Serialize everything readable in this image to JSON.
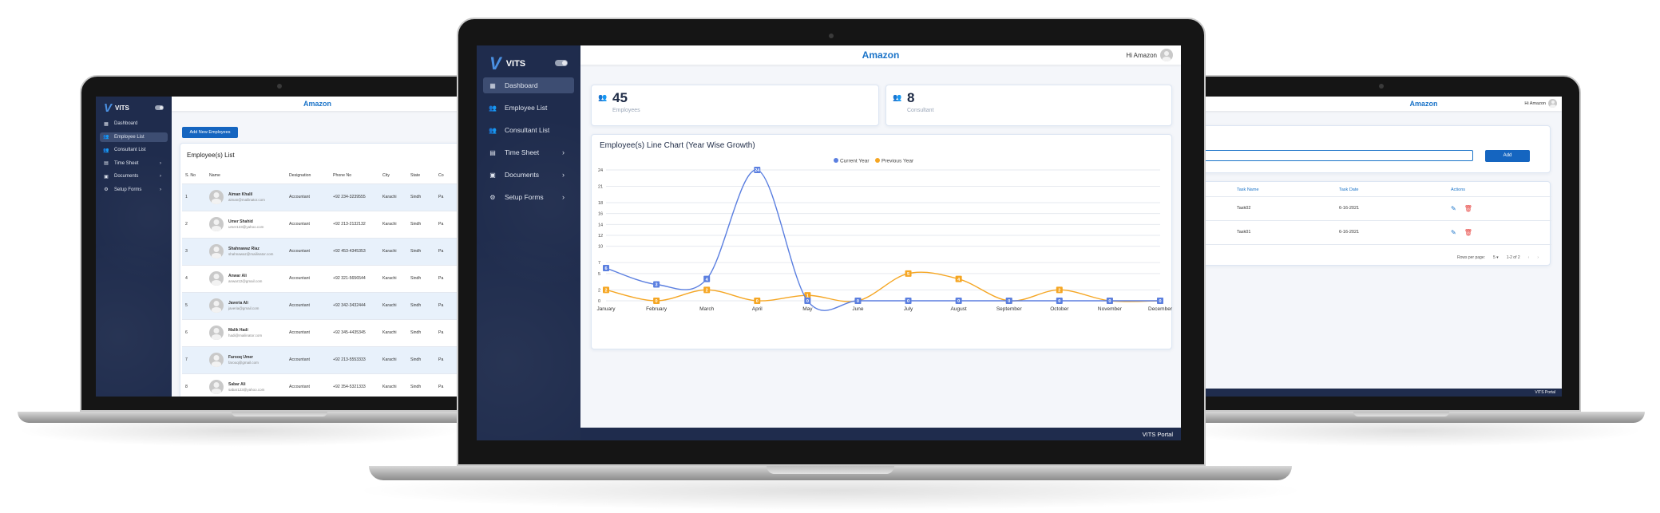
{
  "app": {
    "brand": "VITS",
    "company": "Amazon",
    "greeting": "Hi Amazon",
    "footer": "VITS Portal",
    "colors": {
      "sidebar": "#1f2c4d",
      "accent": "#1a73c8",
      "current_year": "#5b7fe0",
      "previous_year": "#f5a623",
      "delete": "#e53935"
    }
  },
  "nav": [
    {
      "label": "Dashboard",
      "icon": "dashboard-icon",
      "glyph": "▦",
      "active": true,
      "chevron": false
    },
    {
      "label": "Employee List",
      "icon": "people-icon",
      "glyph": "👥",
      "active": false,
      "chevron": false
    },
    {
      "label": "Consultant List",
      "icon": "people-icon",
      "glyph": "👥",
      "active": false,
      "chevron": false
    },
    {
      "label": "Time Sheet",
      "icon": "timesheet-icon",
      "glyph": "▤",
      "active": false,
      "chevron": true
    },
    {
      "label": "Documents",
      "icon": "document-icon",
      "glyph": "▣",
      "active": false,
      "chevron": true
    },
    {
      "label": "Setup Forms",
      "icon": "gear-icon",
      "glyph": "⚙",
      "active": false,
      "chevron": true
    }
  ],
  "left_nav_active": "Employee List",
  "stats": [
    {
      "value": "45",
      "label": "Employees"
    },
    {
      "value": "8",
      "label": "Consultant"
    }
  ],
  "chart_data": {
    "type": "line",
    "title": "Employee(s) Line Chart (Year Wise Growth)",
    "categories": [
      "January",
      "February",
      "March",
      "April",
      "May",
      "June",
      "July",
      "August",
      "September",
      "October",
      "November",
      "December"
    ],
    "series": [
      {
        "name": "Current Year",
        "values": [
          6,
          3,
          4,
          24,
          0,
          0,
          0,
          0,
          0,
          0,
          0,
          0
        ]
      },
      {
        "name": "Previous Year",
        "values": [
          2,
          0,
          2,
          0,
          1,
          0,
          5,
          4,
          0,
          2,
          0,
          0
        ]
      }
    ],
    "yticks": [
      0,
      2,
      5,
      7,
      10,
      12,
      14,
      16,
      18,
      21,
      24
    ],
    "ylim": [
      0,
      24
    ],
    "grid": true,
    "legend": "top-center"
  },
  "employee_page": {
    "add_button": "Add New Employees",
    "list_title": "Employee(s) List",
    "columns": [
      "S. No",
      "Name",
      "Designation",
      "Phone No",
      "City",
      "State",
      "Co"
    ],
    "rows": [
      {
        "sno": "1",
        "name": "Aiman Khalil",
        "email": "aiman@mailinator.com",
        "designation": "Accountant",
        "phone": "+92 234-3239555",
        "city": "Karachi",
        "state": "Sindh",
        "country": "Pa"
      },
      {
        "sno": "2",
        "name": "Umer Shahid",
        "email": "umer123@yahoo.com",
        "designation": "Accountant",
        "phone": "+92 213-2132132",
        "city": "Karachi",
        "state": "Sindh",
        "country": "Pa"
      },
      {
        "sno": "3",
        "name": "Shahnawaz Riaz",
        "email": "shahnawaz@mailinator.com",
        "designation": "Accountant",
        "phone": "+92 453-4345353",
        "city": "Karachi",
        "state": "Sindh",
        "country": "Pa"
      },
      {
        "sno": "4",
        "name": "Anwar Ali",
        "email": "anwar12@gmail.com",
        "designation": "Accountant",
        "phone": "+92 321-5656544",
        "city": "Karachi",
        "state": "Sindh",
        "country": "Pa"
      },
      {
        "sno": "5",
        "name": "Javeria Ali",
        "email": "javeria@gmail.com",
        "designation": "Accountant",
        "phone": "+92 342-3432444",
        "city": "Karachi",
        "state": "Sindh",
        "country": "Pa"
      },
      {
        "sno": "6",
        "name": "Malik Hadi",
        "email": "hadi@mailinator.com",
        "designation": "Accountant",
        "phone": "+92 345-4435345",
        "city": "Karachi",
        "state": "Sindh",
        "country": "Pa"
      },
      {
        "sno": "7",
        "name": "Farooq Umer",
        "email": "farooq@gmail.com",
        "designation": "Accountant",
        "phone": "+92 213-5553333",
        "city": "Karachi",
        "state": "Sindh",
        "country": "Pa"
      },
      {
        "sno": "8",
        "name": "Sabar Ali",
        "email": "sabar123@yahoo.com",
        "designation": "Accountant",
        "phone": "+92 354-5321333",
        "city": "Karachi",
        "state": "Sindh",
        "country": "Pa"
      }
    ]
  },
  "task_page": {
    "add_button": "Add",
    "columns": [
      "Task Name",
      "Task Date",
      "Actions"
    ],
    "rows": [
      {
        "name": "Task02",
        "date": "6-16-2021"
      },
      {
        "name": "Task01",
        "date": "6-16-2021"
      }
    ],
    "rows_per_page_label": "Rows per page:",
    "rows_per_page": "5",
    "range": "1-2 of 2"
  }
}
